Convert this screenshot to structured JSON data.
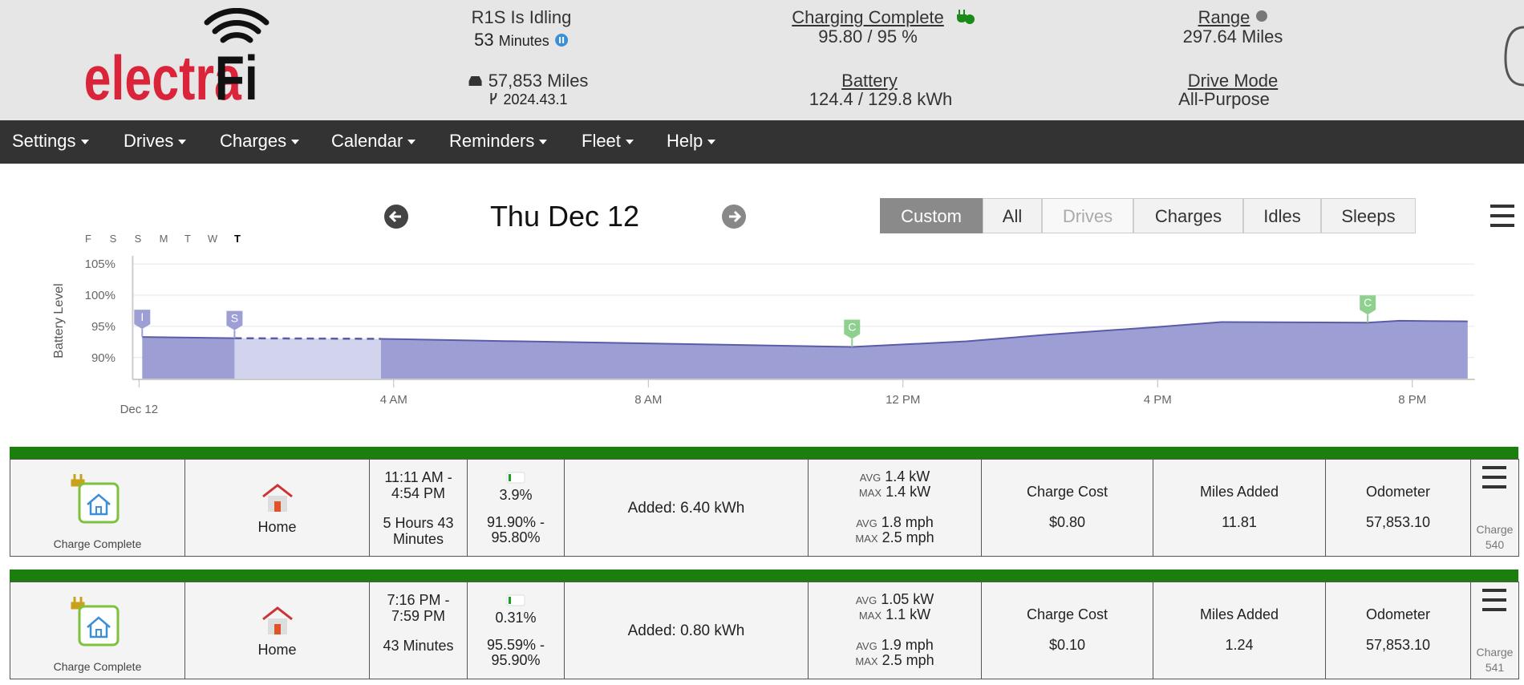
{
  "header": {
    "logo": {
      "main": "electra",
      "accent": "Fi"
    },
    "status": {
      "title": "R1S Is Idling",
      "duration": "53",
      "duration_unit": "Minutes",
      "odometer": "57,853 Miles",
      "software": "2024.43.1"
    },
    "charging": {
      "title": "Charging Complete",
      "level": "95.80 / 95 %",
      "battery_title": "Battery",
      "battery": "124.4 / 129.8 kWh"
    },
    "range": {
      "title": "Range",
      "value": "297.64 Miles",
      "mode_title": "Drive Mode",
      "mode": "All-Purpose"
    }
  },
  "nav": [
    "Settings",
    "Drives",
    "Charges",
    "Calendar",
    "Reminders",
    "Fleet",
    "Help"
  ],
  "date_nav": {
    "date": "Thu Dec 12"
  },
  "filters": [
    {
      "label": "Custom",
      "state": "active"
    },
    {
      "label": "All",
      "state": "normal"
    },
    {
      "label": "Drives",
      "state": "disabled"
    },
    {
      "label": "Charges",
      "state": "normal"
    },
    {
      "label": "Idles",
      "state": "normal"
    },
    {
      "label": "Sleeps",
      "state": "normal"
    }
  ],
  "week_days": [
    {
      "label": "F",
      "current": false
    },
    {
      "label": "S",
      "current": false
    },
    {
      "label": "S",
      "current": false
    },
    {
      "label": "M",
      "current": false
    },
    {
      "label": "T",
      "current": false
    },
    {
      "label": "W",
      "current": false
    },
    {
      "label": "T",
      "current": true
    }
  ],
  "chart_data": {
    "type": "area",
    "y_label": "Battery Level",
    "color": "#9c9ed4",
    "line_color": "#5a5ca8",
    "gap_color": "#d2d3ec",
    "x": [
      0.05,
      1.5,
      2.6,
      3.8,
      6,
      9,
      11.2,
      13,
      14.3,
      16,
      17,
      19.3,
      19.8,
      20.87
    ],
    "values": [
      93.3,
      93.1,
      null,
      93.0,
      92.6,
      92.1,
      91.7,
      92.6,
      93.7,
      94.9,
      95.7,
      95.6,
      95.9,
      95.8
    ],
    "xlim": [
      -0.1,
      20.98
    ],
    "xticks": [
      {
        "value": 0,
        "label": "Dec 12"
      },
      {
        "value": 4,
        "label": "4 AM"
      },
      {
        "value": 8,
        "label": "8 AM"
      },
      {
        "value": 12,
        "label": "12 PM"
      },
      {
        "value": 16,
        "label": "4 PM"
      },
      {
        "value": 20,
        "label": "8 PM"
      }
    ],
    "ylim": [
      86.5,
      106.3
    ],
    "yticks": [
      {
        "value": 90,
        "label": "90%"
      },
      {
        "value": 95,
        "label": "95%"
      },
      {
        "value": 100,
        "label": "100%"
      },
      {
        "value": 105,
        "label": "105%"
      }
    ],
    "grid": true,
    "annotations": [
      {
        "x": 0.05,
        "y": 93.3,
        "label": "I",
        "color": "#9c9ed4"
      },
      {
        "x": 1.5,
        "y": 93.1,
        "label": "S",
        "color": "#9c9ed4"
      },
      {
        "x": 11.2,
        "y": 91.7,
        "label": "C",
        "color": "#8fd08f"
      },
      {
        "x": 19.3,
        "y": 95.6,
        "label": "C",
        "color": "#8fd08f"
      }
    ]
  },
  "sessions": [
    {
      "status": "Charge Complete",
      "location": "Home",
      "start": "11:11 AM -",
      "end": "4:54 PM",
      "duration": "5 Hours 43 Minutes",
      "percent": "3.9%",
      "range": "91.90% - 95.80%",
      "added": "Added: 6.40 kWh",
      "avg_label": "AVG",
      "max_label": "MAX",
      "power_avg": "1.4 kW",
      "power_max": "1.4 kW",
      "speed_avg": "1.8 mph",
      "speed_max": "2.5 mph",
      "cost_title": "Charge Cost",
      "cost": "$0.80",
      "miles_title": "Miles Added",
      "miles": "11.81",
      "odo_title": "Odometer",
      "odo": "57,853.10",
      "id_label": "Charge",
      "id": "540"
    },
    {
      "status": "Charge Complete",
      "location": "Home",
      "start": "7:16 PM -",
      "end": "7:59 PM",
      "duration": "43 Minutes",
      "percent": "0.31%",
      "range": "95.59% - 95.90%",
      "added": "Added: 0.80 kWh",
      "avg_label": "AVG",
      "max_label": "MAX",
      "power_avg": "1.05 kW",
      "power_max": "1.1 kW",
      "speed_avg": "1.9 mph",
      "speed_max": "2.5 mph",
      "cost_title": "Charge Cost",
      "cost": "$0.10",
      "miles_title": "Miles Added",
      "miles": "1.24",
      "odo_title": "Odometer",
      "odo": "57,853.10",
      "id_label": "Charge",
      "id": "541"
    }
  ]
}
